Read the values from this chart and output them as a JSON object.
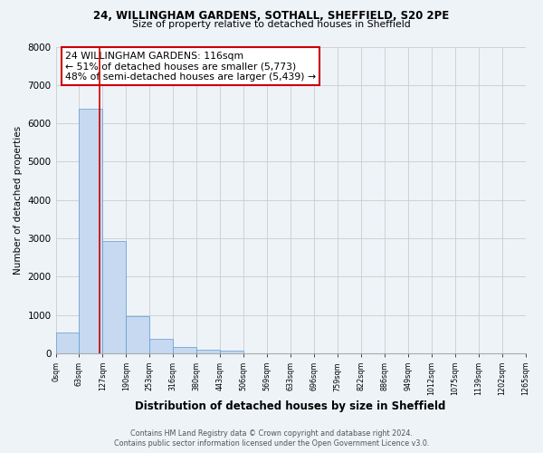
{
  "title1": "24, WILLINGHAM GARDENS, SOTHALL, SHEFFIELD, S20 2PE",
  "title2": "Size of property relative to detached houses in Sheffield",
  "xlabel": "Distribution of detached houses by size in Sheffield",
  "ylabel": "Number of detached properties",
  "bar_heights": [
    540,
    6380,
    2920,
    970,
    370,
    155,
    90,
    70,
    0,
    0,
    0,
    0,
    0,
    0,
    0,
    0,
    0,
    0,
    0,
    0
  ],
  "bar_color": "#c6d9f0",
  "bar_edge_color": "#5b9bd5",
  "property_size_bin": 1.85,
  "vline_color": "#cc0000",
  "annotation_text": "24 WILLINGHAM GARDENS: 116sqm\n← 51% of detached houses are smaller (5,773)\n48% of semi-detached houses are larger (5,439) →",
  "annotation_box_color": "#ffffff",
  "annotation_box_edge_color": "#cc0000",
  "ylim": [
    0,
    8000
  ],
  "yticks": [
    0,
    1000,
    2000,
    3000,
    4000,
    5000,
    6000,
    7000,
    8000
  ],
  "tick_labels": [
    "0sqm",
    "63sqm",
    "127sqm",
    "190sqm",
    "253sqm",
    "316sqm",
    "380sqm",
    "443sqm",
    "506sqm",
    "569sqm",
    "633sqm",
    "696sqm",
    "759sqm",
    "822sqm",
    "886sqm",
    "949sqm",
    "1012sqm",
    "1075sqm",
    "1139sqm",
    "1202sqm",
    "1265sqm"
  ],
  "grid_color": "#cccccc",
  "background_color": "#eef3f8",
  "footer1": "Contains HM Land Registry data © Crown copyright and database right 2024.",
  "footer2": "Contains public sector information licensed under the Open Government Licence v3.0."
}
